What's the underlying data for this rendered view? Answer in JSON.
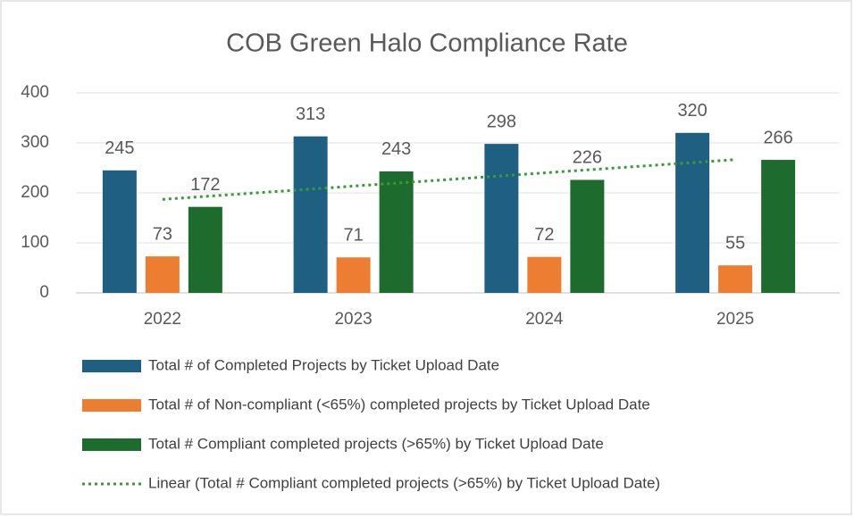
{
  "chart_data": {
    "type": "bar",
    "title": "COB Green Halo Compliance Rate",
    "categories": [
      "2022",
      "2023",
      "2024",
      "2025"
    ],
    "series": [
      {
        "name": "Total # of Completed Projects by Ticket Upload Date",
        "color": "#1f5f82",
        "values": [
          245,
          313,
          298,
          320
        ]
      },
      {
        "name": "Total # of Non-compliant (<65%) completed projects by Ticket Upload Date",
        "color": "#ed7d31",
        "values": [
          73,
          71,
          72,
          55
        ]
      },
      {
        "name": "Total # Compliant completed projects (>65%) by Ticket Upload Date",
        "color": "#1e6b2e",
        "values": [
          172,
          243,
          226,
          266
        ]
      }
    ],
    "trendline": {
      "name": "Linear (Total # Compliant completed projects (>65%) by Ticket Upload Date)",
      "color": "#3a9a3a"
    },
    "ylim": [
      0,
      400
    ],
    "yticks": [
      0,
      100,
      200,
      300,
      400
    ],
    "grid": true
  }
}
